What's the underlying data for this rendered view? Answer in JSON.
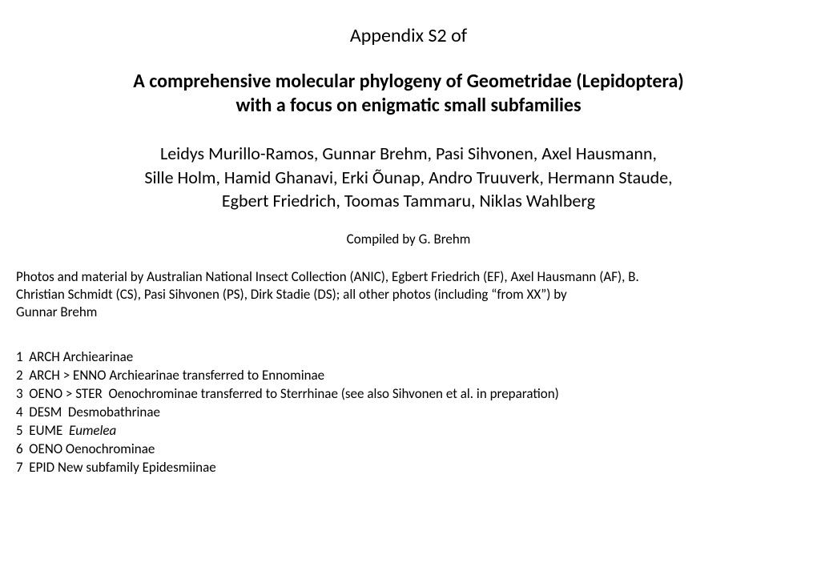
{
  "appendix": "Appendix S2 of",
  "title_line1": "A comprehensive molecular phylogeny of Geometridae (Lepidoptera)",
  "title_line2": "with a focus on enigmatic small subfamilies",
  "authors_line1": "Leidys Murillo-Ramos, Gunnar Brehm, Pasi Sihvonen, Axel Hausmann,",
  "authors_line2": "Sille Holm, Hamid Ghanavi, Erki Õunap, Andro Truuverk, Hermann Staude,",
  "authors_line3": "Egbert Friedrich, Toomas Tammaru, Niklas Wahlberg",
  "compiled": "Compiled by G. Brehm",
  "credits_line1": "Photos and material by Australian National Insect Collection (ANIC), Egbert Friedrich (EF), Axel Hausmann (AF), B.",
  "credits_line2": "Christian Schmidt (CS), Pasi Sihvonen (PS), Dirk Stadie (DS); all other photos (including  “from XX”) by",
  "credits_line3": "Gunnar Brehm",
  "list": {
    "item1": "1  ARCH Archiearinae",
    "item2": "2  ARCH > ENNO Archiearinae transferred to Ennominae",
    "item3": "3  OENO > STER  Oenochrominae transferred to Sterrhinae (see also Sihvonen et al. in preparation)",
    "item4": "4  DESM  Desmobathrinae",
    "item5_prefix": "5  EUME  ",
    "item5_italic": "Eumelea",
    "item6": "6  OENO Oenochrominae",
    "item7": "7  EPID New subfamily Epidesmiinae"
  },
  "style": {
    "background_color": "#ffffff",
    "text_color": "#000000",
    "appendix_fontsize": 24,
    "title_fontsize": 24,
    "title_fontweight": 700,
    "authors_fontsize": 22,
    "compiled_fontsize": 17,
    "credits_fontsize": 17,
    "list_fontsize": 17
  }
}
